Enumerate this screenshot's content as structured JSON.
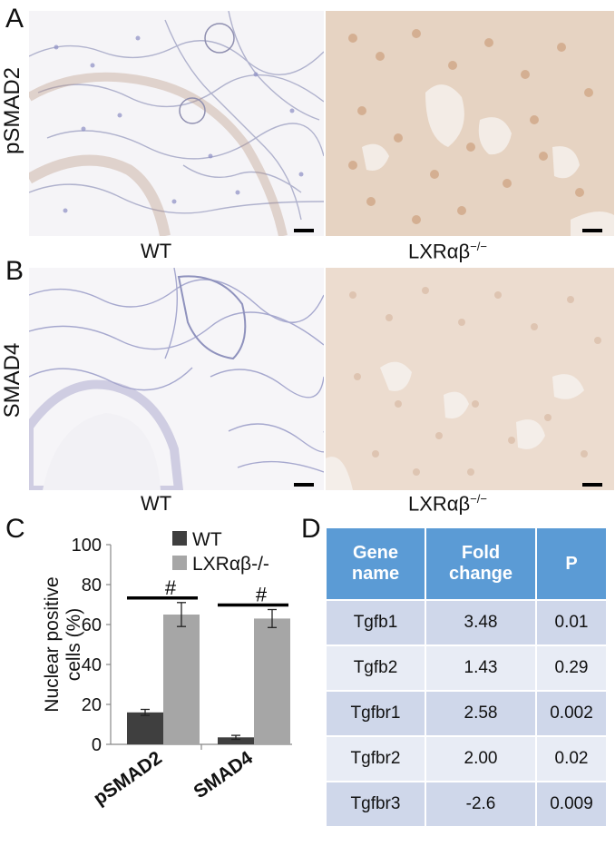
{
  "panels": {
    "a": {
      "letter": "A",
      "row_label": "pSMAD2",
      "left_caption": "WT",
      "right_caption": "LXRαβ",
      "right_sup": "−/−"
    },
    "b": {
      "letter": "B",
      "row_label": "SMAD4",
      "left_caption": "WT",
      "right_caption": "LXRαβ",
      "right_sup": "−/−"
    },
    "c": {
      "letter": "C"
    },
    "d": {
      "letter": "D"
    }
  },
  "chart_data": {
    "type": "bar",
    "categories": [
      "pSMAD2",
      "SMAD4"
    ],
    "series": [
      {
        "name": "WT",
        "values": [
          16,
          3.5
        ],
        "errors": [
          1.5,
          1
        ],
        "color": "#3f3f3f"
      },
      {
        "name": "LXRαβ-/-",
        "values": [
          65,
          63
        ],
        "errors": [
          6,
          4.5
        ],
        "color": "#a6a6a6"
      }
    ],
    "ylabel_line1": "Nuclear positive",
    "ylabel_line2": "cells (%)",
    "ylim": [
      0,
      100
    ],
    "yticks": [
      "0",
      "20",
      "40",
      "60",
      "80",
      "100"
    ],
    "significance": [
      "#",
      "#"
    ],
    "legend_position": "top-right"
  },
  "table": {
    "headers": [
      "Gene\nname",
      "Fold\nchange",
      "P"
    ],
    "rows": [
      [
        "Tgfb1",
        "3.48",
        "0.01"
      ],
      [
        "Tgfb2",
        "1.43",
        "0.29"
      ],
      [
        "Tgfbr1",
        "2.58",
        "0.002"
      ],
      [
        "Tgfbr2",
        "2.00",
        "0.02"
      ],
      [
        "Tgfbr3",
        "-2.6",
        "0.009"
      ]
    ]
  },
  "colors": {
    "stain_wt_bg": "#f4f3f6",
    "stain_ko_bg": "#e7d3c3",
    "table_header": "#5b9bd5",
    "table_row_dark": "#cfd7ea",
    "table_row_light": "#e8ecf5"
  }
}
